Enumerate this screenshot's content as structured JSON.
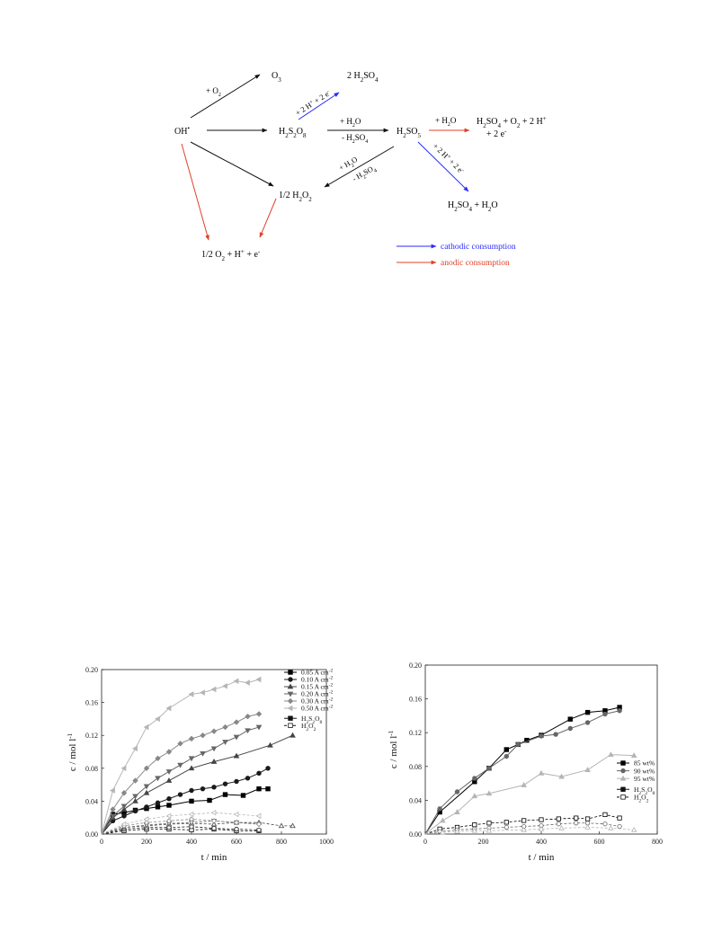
{
  "scheme": {
    "species": {
      "oh": {
        "base": "OH",
        "sup": "•"
      },
      "o3": {
        "base": "O",
        "sub": "3"
      },
      "h2so4_2": {
        "pre": "2 H",
        "sub1": "2",
        "mid": "SO",
        "sub2": "4"
      },
      "h2s2o8": {
        "pre": "H",
        "sub1": "2",
        "mid": "S",
        "sub2": "2",
        "mid2": "O",
        "sub3": "8"
      },
      "h2so5": {
        "pre": "H",
        "sub1": "2",
        "mid": "SO",
        "sub2": "5"
      },
      "h2o2_half": {
        "pre": "1/2 H",
        "sub1": "2",
        "mid": "O",
        "sub2": "2"
      },
      "prod_top_line1": {
        "pre": "H",
        "sub1": "2",
        "mid": "SO",
        "sub2": "4",
        "mid2": " + O",
        "sub3": "2",
        "post": " + 2 H",
        "sup": "+"
      },
      "prod_top_line2": {
        "pre": "+ 2 e",
        "sup": "-"
      },
      "prod_bottom": {
        "pre": "H",
        "sub1": "2",
        "mid": "SO",
        "sub2": "4",
        "post": " + H",
        "sub3": "2",
        "post2": "O"
      },
      "prod_anodic": {
        "pre": "1/2 O",
        "sub1": "2",
        "mid": " + H",
        "sup1": "+",
        "post": " + e",
        "sup2": "-"
      }
    },
    "arrow_labels": {
      "plus_o2": {
        "pre": "+ O",
        "sub1": "2"
      },
      "plus_2h_2e_upper": {
        "pre": "+ 2 H",
        "sup1": "+",
        "mid": " + 2 e",
        "sup2": "-"
      },
      "plus_h2o_a": {
        "pre": "+ H",
        "sub1": "2",
        "mid": "O"
      },
      "minus_h2so4_a": {
        "pre": "- H",
        "sub1": "2",
        "mid": "SO",
        "sub2": "4"
      },
      "plus_h2o_red": {
        "pre": "+ H",
        "sub1": "2",
        "mid": "O"
      },
      "plus_2h_2e_lower": {
        "pre": "+ 2 H",
        "sup1": "+",
        "mid": " + 2 e",
        "sup2": "-"
      },
      "plus_h2o_b": {
        "pre": "+ H",
        "sub1": "2",
        "mid": "O"
      },
      "minus_h2so4_b": {
        "pre": "- H",
        "sub1": "2",
        "mid": "SO",
        "sub2": "4"
      }
    },
    "legend": {
      "cathodic": "cathodic consumption",
      "anodic": "anodic consumption"
    },
    "colors": {
      "cathodic": "#2a2aff",
      "anodic": "#e0402a",
      "neutral": "#111111"
    }
  },
  "chart_data": [
    {
      "type": "line",
      "xlabel": "t / min",
      "ylabel": "c / mol l",
      "ylabel_sup": "-1",
      "xlim": [
        0,
        1000
      ],
      "ylim": [
        0,
        0.2
      ],
      "xticks": [
        "0",
        "200",
        "400",
        "600",
        "800",
        "1000"
      ],
      "yticks": [
        "0.00",
        "0.04",
        "0.08",
        "0.12",
        "0.16",
        "0.20"
      ],
      "legend_position": "top-right",
      "series": [
        {
          "name": "0.05 A cm",
          "name_sup": "-2",
          "marker": "square",
          "color": "#000000",
          "x": [
            0,
            50,
            100,
            150,
            200,
            250,
            300,
            400,
            480,
            550,
            630,
            700,
            740
          ],
          "y": [
            0,
            0.024,
            0.026,
            0.029,
            0.031,
            0.033,
            0.035,
            0.04,
            0.041,
            0.048,
            0.047,
            0.055,
            0.055
          ]
        },
        {
          "name": "0.10 A cm",
          "name_sup": "-2",
          "marker": "circle",
          "color": "#1a1a1a",
          "x": [
            0,
            50,
            100,
            150,
            200,
            250,
            300,
            350,
            400,
            450,
            500,
            550,
            600,
            650,
            700,
            740
          ],
          "y": [
            0,
            0.016,
            0.022,
            0.028,
            0.033,
            0.038,
            0.043,
            0.048,
            0.053,
            0.055,
            0.057,
            0.061,
            0.064,
            0.068,
            0.074,
            0.08
          ]
        },
        {
          "name": "0.15 A cm",
          "name_sup": "-2",
          "marker": "triangle-up",
          "color": "#444444",
          "x": [
            0,
            50,
            100,
            150,
            200,
            300,
            400,
            500,
            600,
            750,
            850
          ],
          "y": [
            0,
            0.02,
            0.03,
            0.04,
            0.05,
            0.065,
            0.08,
            0.088,
            0.095,
            0.108,
            0.12
          ]
        },
        {
          "name": "0.20 A cm",
          "name_sup": "-2",
          "marker": "triangle-down",
          "color": "#666666",
          "x": [
            0,
            50,
            100,
            150,
            200,
            250,
            300,
            350,
            400,
            450,
            500,
            550,
            600,
            650,
            700
          ],
          "y": [
            0,
            0.022,
            0.034,
            0.046,
            0.058,
            0.068,
            0.076,
            0.084,
            0.092,
            0.098,
            0.104,
            0.112,
            0.118,
            0.126,
            0.13
          ]
        },
        {
          "name": "0.30 A cm",
          "name_sup": "-2",
          "marker": "diamond",
          "color": "#888888",
          "x": [
            0,
            50,
            100,
            150,
            200,
            250,
            300,
            350,
            400,
            450,
            500,
            550,
            600,
            650,
            700
          ],
          "y": [
            0,
            0.03,
            0.05,
            0.065,
            0.08,
            0.092,
            0.1,
            0.11,
            0.116,
            0.12,
            0.125,
            0.13,
            0.136,
            0.143,
            0.146
          ]
        },
        {
          "name": "0.50 A cm",
          "name_sup": "-2",
          "marker": "triangle-left",
          "color": "#b5b5b5",
          "x": [
            0,
            50,
            100,
            150,
            200,
            250,
            300,
            400,
            450,
            500,
            550,
            600,
            650,
            700
          ],
          "y": [
            0,
            0.053,
            0.08,
            0.104,
            0.13,
            0.14,
            0.153,
            0.17,
            0.172,
            0.176,
            0.18,
            0.186,
            0.184,
            0.188
          ]
        }
      ],
      "legend_style": [
        {
          "name": "H",
          "sub1": "2",
          "mid": "S",
          "sub2": "2",
          "mid2": "O",
          "sub3": "8",
          "style": "solid"
        },
        {
          "name": "H",
          "sub1": "2",
          "mid": "O",
          "sub2": "2",
          "style": "dashed"
        }
      ],
      "h2o2_series": [
        {
          "color": "#000000",
          "x": [
            0,
            100,
            200,
            300,
            400,
            500,
            600,
            700
          ],
          "y": [
            0,
            0.004,
            0.006,
            0.006,
            0.005,
            0.006,
            0.004,
            0.004
          ]
        },
        {
          "color": "#1a1a1a",
          "x": [
            0,
            100,
            200,
            300,
            400,
            500,
            600,
            700
          ],
          "y": [
            0,
            0.006,
            0.008,
            0.008,
            0.009,
            0.007,
            0.006,
            0.005
          ]
        },
        {
          "color": "#444444",
          "x": [
            0,
            100,
            200,
            300,
            400,
            500,
            600,
            700,
            800,
            850
          ],
          "y": [
            0,
            0.008,
            0.01,
            0.012,
            0.013,
            0.012,
            0.014,
            0.014,
            0.01,
            0.01
          ]
        },
        {
          "color": "#666666",
          "x": [
            0,
            100,
            200,
            300,
            400,
            500,
            600,
            700
          ],
          "y": [
            0,
            0.008,
            0.011,
            0.013,
            0.014,
            0.016,
            0.014,
            0.012
          ]
        },
        {
          "color": "#888888",
          "x": [
            0,
            100,
            200,
            300,
            400,
            500,
            600,
            700
          ],
          "y": [
            0,
            0.01,
            0.014,
            0.016,
            0.018,
            0.016,
            0.014,
            0.012
          ]
        },
        {
          "color": "#b5b5b5",
          "x": [
            0,
            100,
            200,
            300,
            400,
            500,
            600,
            700
          ],
          "y": [
            0,
            0.012,
            0.018,
            0.022,
            0.024,
            0.026,
            0.024,
            0.022
          ]
        }
      ]
    },
    {
      "type": "line",
      "xlabel": "t / min",
      "ylabel": "c / mol l",
      "ylabel_sup": "-1",
      "xlim": [
        0,
        800
      ],
      "ylim": [
        0,
        0.2
      ],
      "xticks": [
        "0",
        "200",
        "400",
        "600",
        "800"
      ],
      "yticks": [
        "0.00",
        "0.04",
        "0.08",
        "0.12",
        "0.16",
        "0.20"
      ],
      "legend_position": "center-right",
      "series": [
        {
          "name": "85 wt%",
          "marker": "square",
          "color": "#000000",
          "x": [
            0,
            50,
            170,
            220,
            280,
            320,
            350,
            400,
            500,
            560,
            620,
            670
          ],
          "y": [
            0,
            0.026,
            0.062,
            0.078,
            0.1,
            0.106,
            0.111,
            0.117,
            0.136,
            0.144,
            0.146,
            0.15
          ]
        },
        {
          "name": "90 wt%",
          "marker": "circle",
          "color": "#666666",
          "x": [
            0,
            50,
            110,
            170,
            220,
            280,
            320,
            400,
            450,
            500,
            560,
            620,
            670
          ],
          "y": [
            0,
            0.03,
            0.05,
            0.066,
            0.078,
            0.092,
            0.106,
            0.116,
            0.118,
            0.125,
            0.132,
            0.142,
            0.146
          ]
        },
        {
          "name": "95 wt%",
          "marker": "triangle-up",
          "color": "#b5b5b5",
          "x": [
            0,
            60,
            110,
            170,
            220,
            340,
            400,
            470,
            560,
            640,
            720
          ],
          "y": [
            0,
            0.016,
            0.026,
            0.045,
            0.048,
            0.058,
            0.072,
            0.068,
            0.076,
            0.094,
            0.093
          ]
        }
      ],
      "legend_style": [
        {
          "name": "H",
          "sub1": "2",
          "mid": "S",
          "sub2": "2",
          "mid2": "O",
          "sub3": "8",
          "style": "solid"
        },
        {
          "name": "H",
          "sub1": "2",
          "mid": "O",
          "sub2": "2",
          "style": "dashed"
        }
      ],
      "h2o2_series": [
        {
          "color": "#000000",
          "x": [
            0,
            50,
            110,
            170,
            220,
            280,
            340,
            400,
            460,
            520,
            560,
            620,
            670
          ],
          "y": [
            0,
            0.006,
            0.008,
            0.011,
            0.013,
            0.014,
            0.016,
            0.017,
            0.018,
            0.019,
            0.018,
            0.023,
            0.019
          ]
        },
        {
          "color": "#666666",
          "x": [
            0,
            50,
            110,
            170,
            220,
            280,
            340,
            400,
            460,
            520,
            560,
            620,
            670
          ],
          "y": [
            0,
            0.003,
            0.005,
            0.006,
            0.007,
            0.008,
            0.009,
            0.01,
            0.012,
            0.013,
            0.013,
            0.012,
            0.009
          ]
        },
        {
          "color": "#b5b5b5",
          "x": [
            0,
            60,
            110,
            170,
            220,
            340,
            400,
            470,
            560,
            640,
            720
          ],
          "y": [
            0,
            0.002,
            0.003,
            0.004,
            0.004,
            0.005,
            0.006,
            0.007,
            0.008,
            0.007,
            0.005
          ]
        }
      ]
    }
  ]
}
